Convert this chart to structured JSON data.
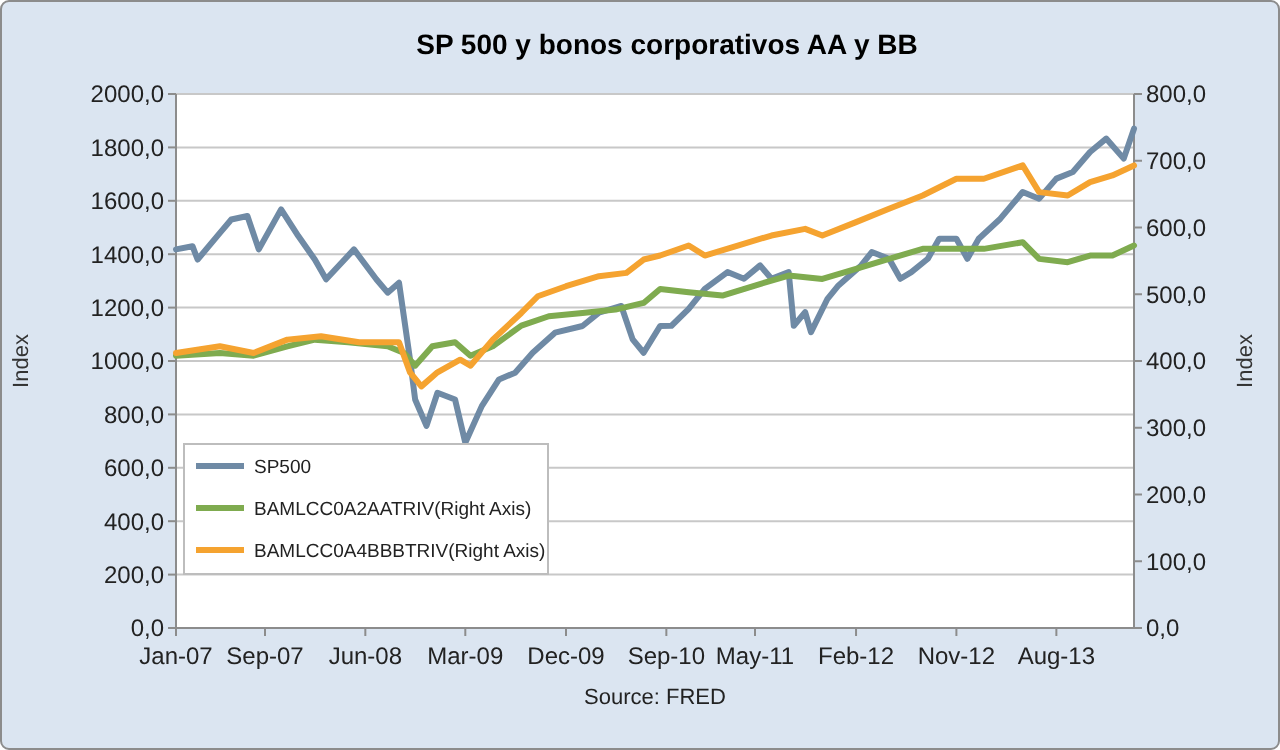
{
  "chart_data": {
    "type": "line",
    "title": "SP 500 y bonos corporativos AA y BB",
    "ylabel": "Index",
    "y2label": "Index",
    "annotations": [
      "Source: FRED"
    ],
    "xlim": [
      "2007-01-01",
      "2014-03-01"
    ],
    "xticks": [
      {
        "value": "2007-01-01",
        "label": "Jan-07"
      },
      {
        "value": "2007-09-01",
        "label": "Sep-07"
      },
      {
        "value": "2008-06-01",
        "label": "Jun-08"
      },
      {
        "value": "2009-03-01",
        "label": "Mar-09"
      },
      {
        "value": "2009-12-01",
        "label": "Dec-09"
      },
      {
        "value": "2010-09-01",
        "label": "Sep-10"
      },
      {
        "value": "2011-05-01",
        "label": "May-11"
      },
      {
        "value": "2012-02-01",
        "label": "Feb-12"
      },
      {
        "value": "2012-11-01",
        "label": "Nov-12"
      },
      {
        "value": "2013-08-01",
        "label": "Aug-13"
      }
    ],
    "ylim": [
      0,
      2000
    ],
    "yticks": [
      {
        "value": 0,
        "label": "0,0"
      },
      {
        "value": 200,
        "label": "200,0"
      },
      {
        "value": 400,
        "label": "400,0"
      },
      {
        "value": 600,
        "label": "600,0"
      },
      {
        "value": 800,
        "label": "800,0"
      },
      {
        "value": 1000,
        "label": "1000,0"
      },
      {
        "value": 1200,
        "label": "1200,0"
      },
      {
        "value": 1400,
        "label": "1400,0"
      },
      {
        "value": 1600,
        "label": "1600,0"
      },
      {
        "value": 1800,
        "label": "1800,0"
      },
      {
        "value": 2000,
        "label": "2000,0"
      }
    ],
    "y2lim": [
      0,
      800
    ],
    "y2ticks": [
      {
        "value": 0,
        "label": "0,0"
      },
      {
        "value": 100,
        "label": "100,0"
      },
      {
        "value": 200,
        "label": "200,0"
      },
      {
        "value": 300,
        "label": "300,0"
      },
      {
        "value": 400,
        "label": "400,0"
      },
      {
        "value": 500,
        "label": "500,0"
      },
      {
        "value": 600,
        "label": "600,0"
      },
      {
        "value": 700,
        "label": "700,0"
      },
      {
        "value": 800,
        "label": "800,0"
      }
    ],
    "grid": "y",
    "legend": "bottom left",
    "marker": "none",
    "line_style": "solid",
    "series": [
      {
        "name": "SP500",
        "color": "#6f8aa5",
        "x": [
          "2007-01-01",
          "2007-02-15",
          "2007-03-01",
          "2007-05-01",
          "2007-06-01",
          "2007-07-15",
          "2007-08-15",
          "2007-10-15",
          "2007-12-01",
          "2008-01-15",
          "2008-02-15",
          "2008-05-01",
          "2008-07-01",
          "2008-08-01",
          "2008-09-01",
          "2008-10-01",
          "2008-10-15",
          "2008-11-15",
          "2008-12-15",
          "2009-02-01",
          "2009-03-01",
          "2009-04-15",
          "2009-06-01",
          "2009-07-15",
          "2009-09-01",
          "2009-11-01",
          "2010-01-15",
          "2010-03-01",
          "2010-05-01",
          "2010-06-01",
          "2010-07-01",
          "2010-08-15",
          "2010-09-15",
          "2010-11-01",
          "2010-12-15",
          "2011-02-15",
          "2011-04-01",
          "2011-05-15",
          "2011-06-15",
          "2011-08-01",
          "2011-08-15",
          "2011-09-15",
          "2011-10-01",
          "2011-11-15",
          "2011-12-15",
          "2012-02-15",
          "2012-03-15",
          "2012-05-01",
          "2012-06-01",
          "2012-07-01",
          "2012-08-15",
          "2012-09-15",
          "2012-11-01",
          "2012-12-01",
          "2013-01-01",
          "2013-03-01",
          "2013-05-01",
          "2013-06-15",
          "2013-08-01",
          "2013-09-15",
          "2013-11-01",
          "2013-12-15",
          "2014-02-01",
          "2014-03-01"
        ],
        "values": [
          1418,
          1430,
          1380,
          1480,
          1530,
          1543,
          1418,
          1568,
          1468,
          1380,
          1306,
          1418,
          1306,
          1256,
          1293,
          1006,
          856,
          757,
          881,
          856,
          694,
          831,
          931,
          956,
          1031,
          1106,
          1131,
          1181,
          1206,
          1081,
          1031,
          1131,
          1132,
          1195,
          1270,
          1333,
          1308,
          1358,
          1308,
          1333,
          1132,
          1183,
          1108,
          1233,
          1283,
          1358,
          1408,
          1383,
          1308,
          1333,
          1383,
          1458,
          1458,
          1383,
          1458,
          1533,
          1633,
          1608,
          1683,
          1708,
          1783,
          1833,
          1758,
          1870
        ]
      },
      {
        "name": "BAMLCC0A2AATRIV(Right Axis)",
        "color": "#7fab4f",
        "axis": "y2",
        "x": [
          "2007-01-01",
          "2007-05-01",
          "2007-08-01",
          "2007-11-01",
          "2008-01-15",
          "2008-04-15",
          "2008-08-01",
          "2008-09-15",
          "2008-10-15",
          "2008-12-01",
          "2009-02-01",
          "2009-03-15",
          "2009-05-15",
          "2009-08-01",
          "2009-10-15",
          "2010-01-15",
          "2010-04-15",
          "2010-07-01",
          "2010-08-15",
          "2010-11-01",
          "2011-02-01",
          "2011-05-01",
          "2011-08-01",
          "2011-11-01",
          "2012-02-01",
          "2012-05-01",
          "2012-08-01",
          "2012-11-01",
          "2013-01-15",
          "2013-05-01",
          "2013-06-15",
          "2013-09-01",
          "2013-11-01",
          "2014-01-01",
          "2014-03-01"
        ],
        "values": [
          408,
          412,
          408,
          422,
          432,
          428,
          422,
          412,
          393,
          422,
          428,
          408,
          422,
          453,
          467,
          472,
          477,
          487,
          508,
          503,
          498,
          513,
          528,
          523,
          538,
          553,
          568,
          568,
          568,
          578,
          553,
          548,
          558,
          558,
          573
        ]
      },
      {
        "name": "BAMLCC0A4BBBTRIV(Right Axis)",
        "color": "#f5a330",
        "axis": "y2",
        "x": [
          "2007-01-01",
          "2007-05-01",
          "2007-08-01",
          "2007-11-01",
          "2008-02-01",
          "2008-05-15",
          "2008-09-01",
          "2008-10-01",
          "2008-11-01",
          "2008-12-15",
          "2009-02-15",
          "2009-03-15",
          "2009-05-15",
          "2009-08-01",
          "2009-09-15",
          "2009-12-01",
          "2010-03-01",
          "2010-05-15",
          "2010-07-01",
          "2010-08-15",
          "2010-11-01",
          "2010-12-15",
          "2011-03-15",
          "2011-06-15",
          "2011-09-15",
          "2011-11-01",
          "2012-02-01",
          "2012-05-01",
          "2012-08-01",
          "2012-11-01",
          "2013-01-15",
          "2013-05-01",
          "2013-06-15",
          "2013-09-01",
          "2013-11-01",
          "2014-01-01",
          "2014-03-01"
        ],
        "values": [
          412,
          422,
          412,
          432,
          437,
          428,
          428,
          383,
          362,
          383,
          402,
          393,
          432,
          472,
          497,
          512,
          527,
          532,
          552,
          558,
          573,
          558,
          573,
          588,
          598,
          588,
          608,
          628,
          648,
          673,
          673,
          693,
          653,
          648,
          668,
          678,
          693
        ]
      }
    ]
  }
}
